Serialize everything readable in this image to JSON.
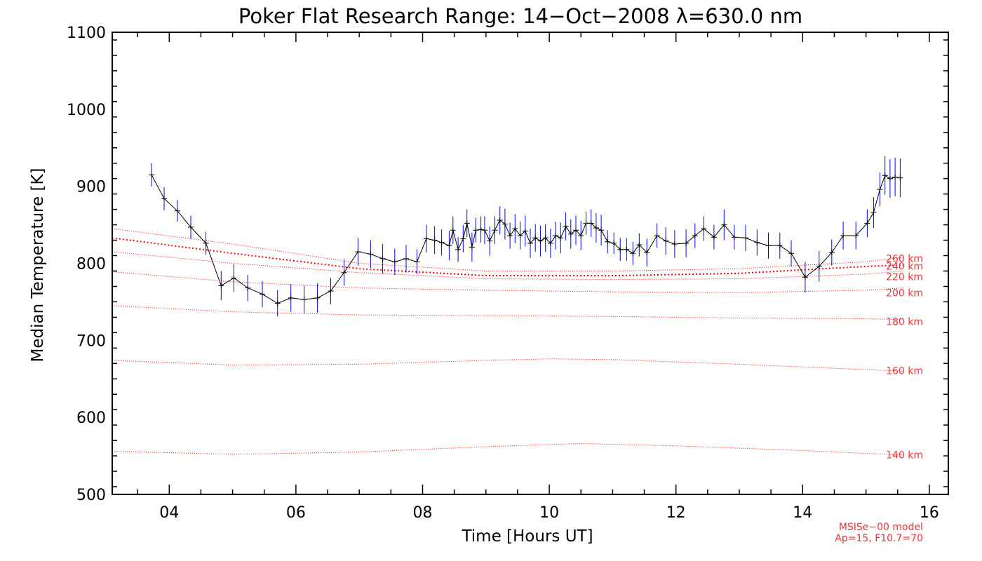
{
  "chart_data": {
    "type": "line",
    "title": "Poker Flat Research Range: 14−Oct−2008 λ=630.0 nm",
    "xlabel": "Time [Hours UT]",
    "ylabel": "Median Temperature [K]",
    "xlim": [
      3.1,
      16.3
    ],
    "ylim": [
      500,
      1100
    ],
    "xticks": [
      4,
      6,
      8,
      10,
      12,
      14,
      16
    ],
    "xtick_labels": [
      "04",
      "06",
      "08",
      "10",
      "12",
      "14",
      "16"
    ],
    "yticks": [
      500,
      600,
      700,
      800,
      900,
      1000,
      1100
    ],
    "ytick_labels": [
      "500",
      "600",
      "700",
      "800",
      "900",
      "1000",
      "1100"
    ],
    "grid": false,
    "colors": {
      "measurement": "#000000",
      "error_bar": "#0000ff",
      "model": "#ff0000",
      "model_label": "#e8333a"
    },
    "series": [
      {
        "x": [
          3.72,
          3.92,
          4.13,
          4.34,
          4.58,
          4.82,
          5.02,
          5.24,
          5.47,
          5.71,
          5.92,
          6.13,
          6.34,
          6.55,
          6.76,
          6.98,
          7.18,
          7.37,
          7.56,
          7.74,
          7.91,
          8.06,
          8.19,
          8.3,
          8.42,
          8.48,
          8.56,
          8.64,
          8.7,
          8.78,
          8.84,
          8.92,
          8.98,
          9.06,
          9.14,
          9.22,
          9.3,
          9.38,
          9.46,
          9.54,
          9.62,
          9.7,
          9.78,
          9.86,
          9.94,
          10.02,
          10.1,
          10.18,
          10.26,
          10.34,
          10.42,
          10.5,
          10.58,
          10.66,
          10.74,
          10.82,
          10.92,
          11.02,
          11.12,
          11.22,
          11.32,
          11.42,
          11.54,
          11.7,
          11.84,
          11.98,
          12.16,
          12.3,
          12.44,
          12.6,
          12.76,
          12.92,
          13.1,
          13.28,
          13.46,
          13.64,
          13.82,
          14.04,
          14.26,
          14.46,
          14.64,
          14.84,
          15.02,
          15.12,
          15.22,
          15.3,
          15.38,
          15.46,
          15.54
        ],
        "y": [
          915,
          884,
          868,
          847,
          826,
          771,
          781,
          768,
          760,
          748,
          755,
          753,
          755,
          764,
          788,
          815,
          812,
          806,
          802,
          806,
          802,
          832,
          830,
          827,
          823,
          843,
          818,
          832,
          852,
          821,
          843,
          844,
          843,
          829,
          843,
          856,
          851,
          836,
          845,
          836,
          842,
          826,
          833,
          829,
          833,
          826,
          836,
          833,
          848,
          838,
          843,
          836,
          852,
          852,
          846,
          843,
          828,
          826,
          818,
          818,
          813,
          824,
          814,
          836,
          829,
          825,
          826,
          836,
          845,
          834,
          850,
          834,
          833,
          827,
          823,
          823,
          813,
          782,
          796,
          814,
          836,
          836,
          852,
          866,
          896,
          914,
          910,
          912,
          911
        ],
        "err": [
          15,
          15,
          14,
          15,
          15,
          19,
          18,
          17,
          17,
          17,
          18,
          18,
          19,
          17,
          17,
          18,
          18,
          19,
          17,
          18,
          16,
          18,
          18,
          17,
          19,
          18,
          16,
          18,
          18,
          19,
          16,
          17,
          18,
          19,
          18,
          18,
          20,
          17,
          19,
          18,
          20,
          19,
          18,
          20,
          18,
          19,
          18,
          20,
          18,
          19,
          19,
          19,
          15,
          18,
          19,
          20,
          15,
          14,
          15,
          15,
          15,
          15,
          18,
          16,
          18,
          18,
          18,
          16,
          16,
          16,
          20,
          16,
          17,
          17,
          17,
          17,
          17,
          20,
          20,
          17,
          18,
          18,
          18,
          20,
          22,
          25,
          25,
          25,
          25
        ]
      }
    ],
    "model_curves": [
      {
        "label": "260 km",
        "x": [
          3.1,
          5,
          7,
          9,
          11,
          13,
          15,
          15.6
        ],
        "y": [
          845,
          825,
          800,
          790,
          790,
          793,
          802,
          808
        ]
      },
      {
        "label": "240 km",
        "x": [
          3.1,
          5,
          7,
          9,
          11,
          13,
          15,
          15.6
        ],
        "y": [
          833,
          813,
          793,
          784,
          784,
          787,
          796,
          798
        ]
      },
      {
        "label": "220 km",
        "x": [
          3.1,
          5,
          7,
          9,
          11,
          13,
          15,
          15.6
        ],
        "y": [
          815,
          800,
          788,
          780,
          779,
          780,
          786,
          790
        ]
      },
      {
        "label": "200 km",
        "x": [
          3.1,
          5,
          7,
          9,
          11,
          13,
          15,
          15.6
        ],
        "y": [
          789,
          776,
          768,
          765,
          763,
          762,
          765,
          768
        ]
      },
      {
        "label": "180 km",
        "x": [
          3.1,
          5,
          7,
          9,
          11,
          13,
          15,
          15.6
        ],
        "y": [
          745,
          737,
          733,
          732,
          731,
          729,
          728,
          727
        ]
      },
      {
        "label": "160 km",
        "x": [
          3.1,
          5,
          7,
          9,
          10,
          11,
          13,
          15,
          15.6
        ],
        "y": [
          674,
          668,
          669,
          674,
          676,
          675,
          669,
          662,
          660
        ]
      },
      {
        "label": "140 km",
        "x": [
          3.1,
          5,
          7,
          9,
          10.5,
          12,
          14,
          15.6
        ],
        "y": [
          556,
          552,
          555,
          562,
          566,
          563,
          557,
          551
        ]
      }
    ],
    "model_label_y": [
      802,
      792,
      778,
      757,
      720,
      656,
      547
    ],
    "note_lines": [
      "MSISe−00 model",
      "Ap=15, F10.7=70"
    ]
  }
}
